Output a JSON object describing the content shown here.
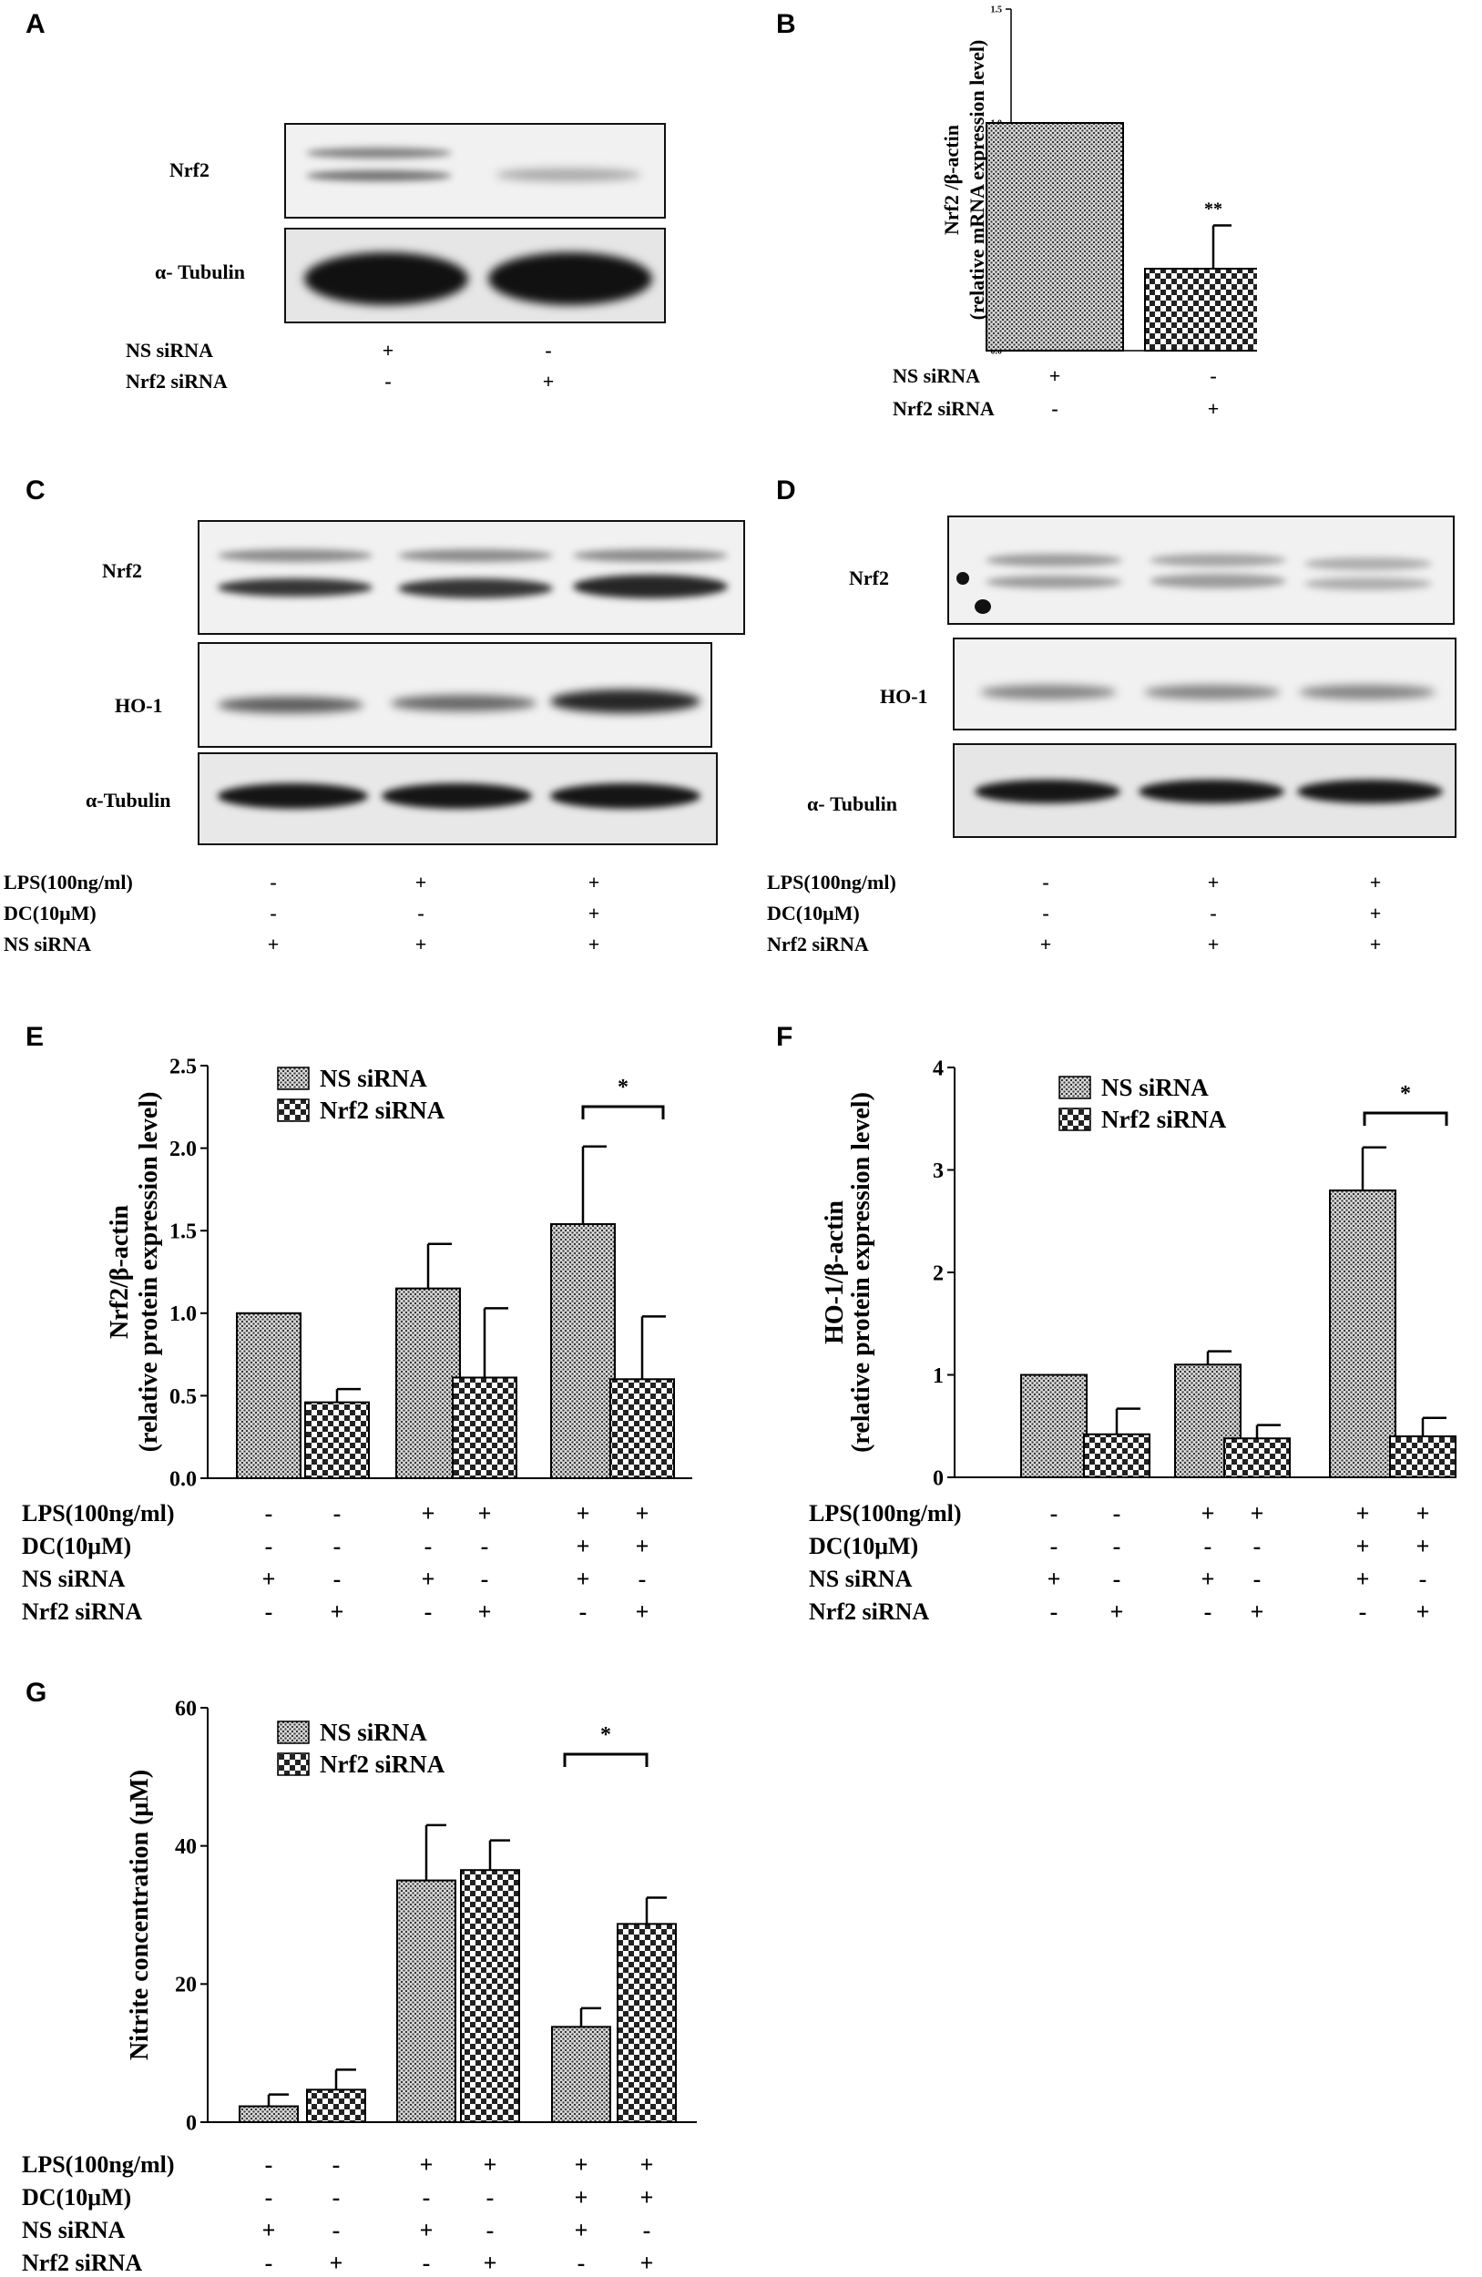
{
  "panels": {
    "A": {
      "label": "A",
      "rows": [
        "Nrf2",
        "α- Tubulin"
      ],
      "conditions": [
        {
          "name": "NS siRNA",
          "signs": [
            "+",
            "-"
          ]
        },
        {
          "name": "Nrf2 siRNA",
          "signs": [
            "-",
            "+"
          ]
        }
      ]
    },
    "C": {
      "label": "C",
      "rows": [
        "Nrf2",
        "HO-1",
        "α-Tubulin"
      ],
      "conditions": [
        {
          "name": "LPS(100ng/ml)",
          "signs": [
            "-",
            "+",
            "+"
          ]
        },
        {
          "name": "DC(10μM)",
          "signs": [
            "-",
            "-",
            "+"
          ]
        },
        {
          "name": "NS siRNA",
          "signs": [
            "+",
            "+",
            "+"
          ]
        }
      ]
    },
    "D": {
      "label": "D",
      "rows": [
        "Nrf2",
        "HO-1",
        "α- Tubulin"
      ],
      "conditions": [
        {
          "name": "LPS(100ng/ml)",
          "signs": [
            "-",
            "+",
            "+"
          ]
        },
        {
          "name": "DC(10μM)",
          "signs": [
            "-",
            "-",
            "+"
          ]
        },
        {
          "name": "Nrf2 siRNA",
          "signs": [
            "+",
            "+",
            "+"
          ]
        }
      ]
    },
    "B": {
      "label": "B"
    },
    "E": {
      "label": "E"
    },
    "F": {
      "label": "F"
    },
    "G": {
      "label": "G"
    }
  },
  "chart_data": [
    {
      "id": "B",
      "type": "bar",
      "ylabel": "Nrf2 /β-actin",
      "ylabel2": "(relative mRNA expression level)",
      "ylim": [
        0,
        1.5
      ],
      "yticks": [
        "0.0",
        "0.5",
        "1.0",
        "1.5"
      ],
      "values": [
        1.0,
        0.36
      ],
      "errors": [
        0,
        0.19
      ],
      "significance": [
        "",
        "**"
      ],
      "conditions": [
        {
          "name": "NS siRNA",
          "signs": [
            "+",
            "-"
          ]
        },
        {
          "name": "Nrf2 siRNA",
          "signs": [
            "-",
            "+"
          ]
        }
      ]
    },
    {
      "id": "E",
      "type": "bar",
      "ylabel": "Nrf2/β-actin",
      "ylabel2": "(relative protein expression level)",
      "ylim": [
        0,
        2.5
      ],
      "yticks": [
        "0.0",
        "0.5",
        "1.0",
        "1.5",
        "2.0",
        "2.5"
      ],
      "series": [
        {
          "name": "NS siRNA",
          "values": [
            1.0,
            1.15,
            1.54
          ],
          "errors": [
            0,
            0.27,
            0.47
          ]
        },
        {
          "name": "Nrf2 siRNA",
          "values": [
            0.46,
            0.61,
            0.6
          ],
          "errors": [
            0.08,
            0.42,
            0.38
          ]
        }
      ],
      "significance": "*",
      "conditions": [
        {
          "name": "LPS(100ng/ml)",
          "signs": [
            "-",
            "-",
            "+",
            "+",
            "+",
            "+"
          ]
        },
        {
          "name": "DC(10μM)",
          "signs": [
            "-",
            "-",
            "-",
            "-",
            "+",
            "+"
          ]
        },
        {
          "name": "NS siRNA",
          "signs": [
            "+",
            "-",
            "+",
            "-",
            "+",
            "-"
          ]
        },
        {
          "name": "Nrf2 siRNA",
          "signs": [
            "-",
            "+",
            "-",
            "+",
            "-",
            "+"
          ]
        }
      ]
    },
    {
      "id": "F",
      "type": "bar",
      "ylabel": "HO-1/β-actin",
      "ylabel2": "(relative protein expression level)",
      "ylim": [
        0,
        4
      ],
      "yticks": [
        "0",
        "1",
        "2",
        "3",
        "4"
      ],
      "series": [
        {
          "name": "NS siRNA",
          "values": [
            1.0,
            1.1,
            2.8
          ],
          "errors": [
            0,
            0.13,
            0.42
          ]
        },
        {
          "name": "Nrf2 siRNA",
          "values": [
            0.42,
            0.38,
            0.4
          ],
          "errors": [
            0.25,
            0.13,
            0.18
          ]
        }
      ],
      "significance": "*",
      "conditions": [
        {
          "name": "LPS(100ng/ml)",
          "signs": [
            "-",
            "-",
            "+",
            "+",
            "+",
            "+"
          ]
        },
        {
          "name": "DC(10μM)",
          "signs": [
            "-",
            "-",
            "-",
            "-",
            "+",
            "+"
          ]
        },
        {
          "name": "NS siRNA",
          "signs": [
            "+",
            "-",
            "+",
            "-",
            "+",
            "-"
          ]
        },
        {
          "name": "Nrf2 siRNA",
          "signs": [
            "-",
            "+",
            "-",
            "+",
            "-",
            "+"
          ]
        }
      ]
    },
    {
      "id": "G",
      "type": "bar",
      "ylabel": "Nitrite concentration (μM)",
      "ylabel2": "",
      "ylim": [
        0,
        60
      ],
      "yticks": [
        "0",
        "20",
        "40",
        "60"
      ],
      "series": [
        {
          "name": "NS siRNA",
          "values": [
            2.3,
            35.0,
            13.8
          ],
          "errors": [
            1.7,
            8.0,
            2.7
          ]
        },
        {
          "name": "Nrf2 siRNA",
          "values": [
            4.7,
            36.5,
            28.7
          ],
          "errors": [
            2.9,
            4.3,
            3.8
          ]
        }
      ],
      "significance": "*",
      "conditions": [
        {
          "name": "LPS(100ng/ml)",
          "signs": [
            "-",
            "-",
            "+",
            "+",
            "+",
            "+"
          ]
        },
        {
          "name": "DC(10μM)",
          "signs": [
            "-",
            "-",
            "-",
            "-",
            "+",
            "+"
          ]
        },
        {
          "name": "NS siRNA",
          "signs": [
            "+",
            "-",
            "+",
            "-",
            "+",
            "-"
          ]
        },
        {
          "name": "Nrf2 siRNA",
          "signs": [
            "-",
            "+",
            "-",
            "+",
            "-",
            "+"
          ]
        }
      ]
    }
  ]
}
